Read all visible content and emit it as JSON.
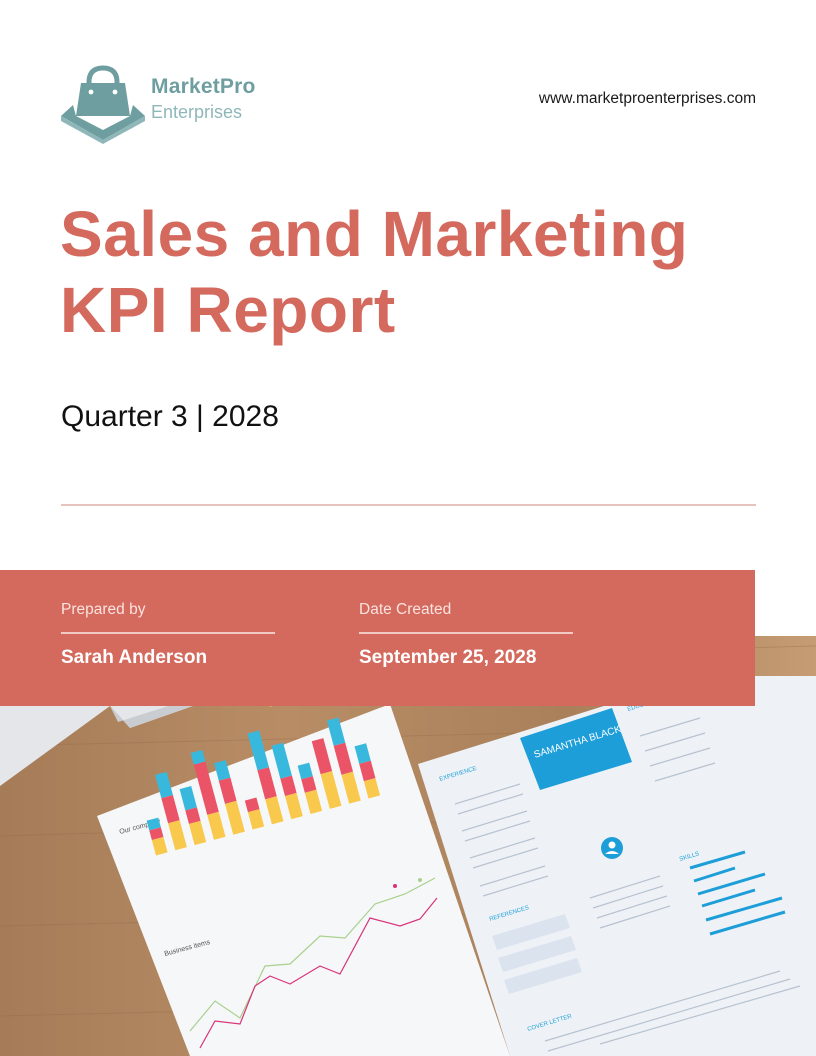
{
  "brand": {
    "name": "MarketPro",
    "subtitle": "Enterprises",
    "website": "www.marketproenterprises.com",
    "logo_icon": "shopping-bag-icon",
    "color": "#6f9ea1"
  },
  "report": {
    "title_line1": "Sales and Marketing",
    "title_line2": "KPI Report",
    "period": "Quarter 3 | 2028",
    "accent_color": "#d4695d"
  },
  "meta": {
    "prepared_label": "Prepared by",
    "prepared_value": "Sarah Anderson",
    "date_label": "Date Created",
    "date_value": "September 25, 2028"
  },
  "photo": {
    "left_sheet_title": "Our company",
    "left_sheet_chart2_title": "Business items",
    "right_sheet_name": "SAMANTHA BLACK",
    "right_sheet_section_experience": "EXPERIENCE",
    "right_sheet_section_skills": "SKILLS",
    "right_sheet_section_references": "REFERENCES",
    "right_sheet_section_cover": "COVER LETTER",
    "right_sheet_section_education": "EDUCATION"
  }
}
